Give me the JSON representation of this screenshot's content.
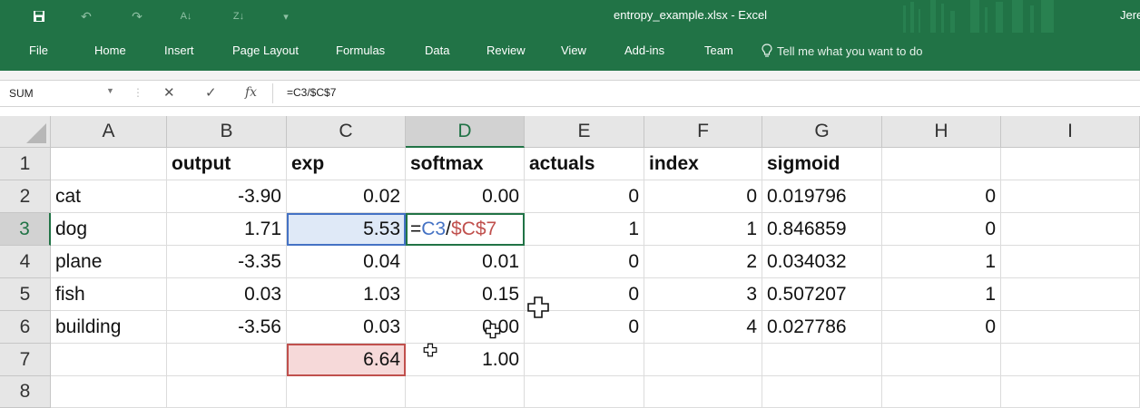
{
  "window": {
    "title": "entropy_example.xlsx  -  Excel",
    "user": "Jere"
  },
  "quick_access": [
    {
      "name": "save-icon",
      "glyph": "▣"
    },
    {
      "name": "undo-icon",
      "glyph": "↶"
    },
    {
      "name": "redo-icon",
      "glyph": "↷"
    },
    {
      "name": "sort-ascending-icon",
      "glyph": "⇅"
    },
    {
      "name": "sort-descending-icon",
      "glyph": "⇅"
    },
    {
      "name": "customize-qat-icon",
      "glyph": "▾"
    }
  ],
  "ribbon": {
    "tabs": [
      "File",
      "Home",
      "Insert",
      "Page Layout",
      "Formulas",
      "Data",
      "Review",
      "View",
      "Add-ins",
      "Team"
    ],
    "tell_me": "Tell me what you want to do"
  },
  "formula_bar": {
    "name_box": "SUM",
    "cancel_glyph": "✕",
    "enter_glyph": "✓",
    "fx_label": "fx",
    "formula": "=C3/$C$7"
  },
  "sheet": {
    "columns": [
      "A",
      "B",
      "C",
      "D",
      "E",
      "F",
      "G",
      "H",
      "I"
    ],
    "active_column": "D",
    "rows": [
      "1",
      "2",
      "3",
      "4",
      "5",
      "6",
      "7",
      "8"
    ],
    "active_row": "3",
    "headers": {
      "B": "output",
      "C": "exp",
      "D": "softmax",
      "E": "actuals",
      "F": "index",
      "G": "sigmoid"
    },
    "data": [
      {
        "label": "cat",
        "output": "-3.90",
        "exp": "0.02",
        "softmax": "0.00",
        "actuals": "0",
        "index": "0",
        "sigmoid": "0.019796",
        "h": "0"
      },
      {
        "label": "dog",
        "output": "1.71",
        "exp": "5.53",
        "softmax": "",
        "actuals": "1",
        "index": "1",
        "sigmoid": "0.846859",
        "h": "0"
      },
      {
        "label": "plane",
        "output": "-3.35",
        "exp": "0.04",
        "softmax": "0.01",
        "actuals": "0",
        "index": "2",
        "sigmoid": "0.034032",
        "h": "1"
      },
      {
        "label": "fish",
        "output": "0.03",
        "exp": "1.03",
        "softmax": "0.15",
        "actuals": "0",
        "index": "3",
        "sigmoid": "0.507207",
        "h": "1"
      },
      {
        "label": "building",
        "output": "-3.56",
        "exp": "0.03",
        "softmax": "0.00",
        "actuals": "0",
        "index": "4",
        "sigmoid": "0.027786",
        "h": "0"
      }
    ],
    "totals": {
      "exp": "6.64",
      "softmax": "1.00"
    },
    "edit_cell": {
      "eq": "=",
      "ref1": "C3",
      "op": "/",
      "ref2": "$C$7"
    }
  },
  "colors": {
    "excel_green": "#217346",
    "ref_blue": "#4472c4",
    "ref_red": "#c0504d"
  }
}
